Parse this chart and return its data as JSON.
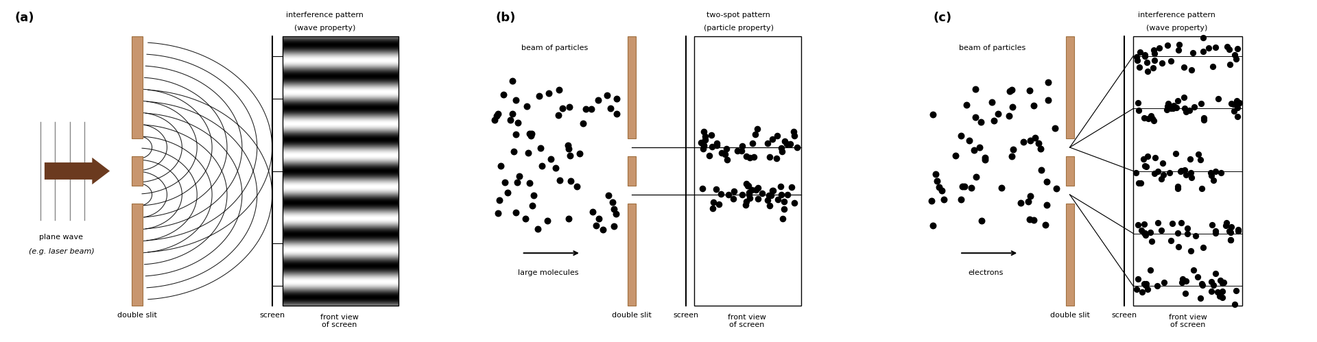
{
  "bg_color": "#ffffff",
  "slit_color": "#c8966e",
  "slit_edge_color": "#a07040",
  "text_color": "#000000",
  "panel_a": {
    "label": "(a)",
    "title1": "interference pattern",
    "title2": "(wave property)",
    "bottom_labels": [
      "double slit",
      "screen",
      "front view\nof screen"
    ],
    "side_label1": "plane wave",
    "side_label2": "(e.g. laser beam)"
  },
  "panel_b": {
    "label": "(b)",
    "title1": "two-spot pattern",
    "title2": "(particle property)",
    "bottom_labels": [
      "double slit",
      "screen",
      "front view\nof screen"
    ],
    "side_label1": "beam of particles",
    "side_label2": "large molecules"
  },
  "panel_c": {
    "label": "(c)",
    "title1": "interference pattern",
    "title2": "(wave property)",
    "bottom_labels": [
      "double slit",
      "screen",
      "front view\nof screen"
    ],
    "side_label1": "beam of particles",
    "side_label2": "electrons"
  }
}
